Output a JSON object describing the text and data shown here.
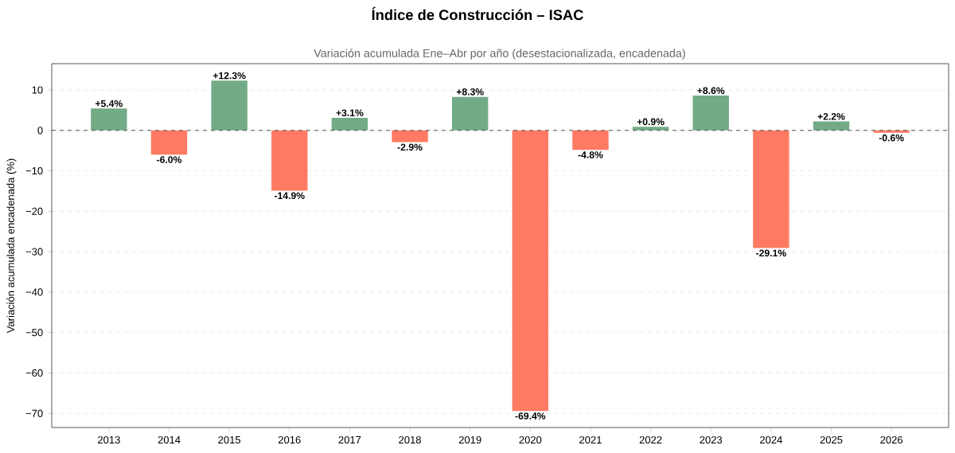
{
  "chart_data": {
    "type": "bar",
    "title": "Índice de Construcción – ISAC",
    "subtitle": "Variación acumulada Ene–Abr por año (desestacionalizada, encadenada)",
    "ylabel": "Variación acumulada encadenada (%)",
    "categories": [
      "2013",
      "2014",
      "2015",
      "2016",
      "2017",
      "2018",
      "2019",
      "2020",
      "2021",
      "2022",
      "2023",
      "2024",
      "2025",
      "2026"
    ],
    "values": [
      5.4,
      -6.0,
      12.3,
      -14.9,
      3.1,
      -2.9,
      8.3,
      -69.4,
      -4.8,
      0.9,
      8.6,
      -29.1,
      2.2,
      -0.6
    ],
    "colors": [
      "#73ab87",
      "#ff7a62",
      "#73ab87",
      "#ff7a62",
      "#73ab87",
      "#ff7a62",
      "#73ab87",
      "#ff7a62",
      "#ff7a62",
      "#73ab87",
      "#73ab87",
      "#ff7a62",
      "#73ab87",
      "#ff7a62"
    ],
    "value_labels": [
      "+5.4%",
      "-6.0%",
      "+12.3%",
      "-14.9%",
      "+3.1%",
      "-2.9%",
      "+8.3%",
      "-69.4%",
      "-4.8%",
      "+0.9%",
      "+8.6%",
      "-29.1%",
      "+2.2%",
      "-0.6%"
    ],
    "ylim": [
      -73.5,
      16.5
    ],
    "yticks": [
      {
        "value": -70,
        "label": "−70"
      },
      {
        "value": -60,
        "label": "−60"
      },
      {
        "value": -50,
        "label": "−50"
      },
      {
        "value": -40,
        "label": "−40"
      },
      {
        "value": -30,
        "label": "−30"
      },
      {
        "value": -20,
        "label": "−20"
      },
      {
        "value": -10,
        "label": "−10"
      },
      0,
      10
    ],
    "grid": "y",
    "ref_lines": [
      {
        "axis": "y",
        "value": 0,
        "color": "#555555",
        "line_style": "dashed"
      }
    ]
  }
}
